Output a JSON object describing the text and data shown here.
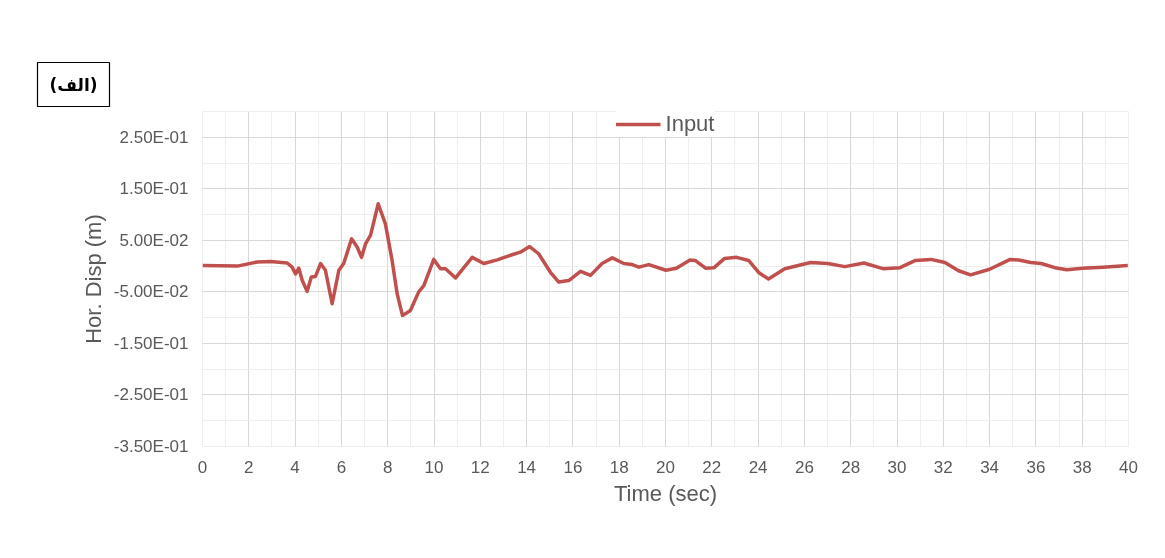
{
  "chart_data": {
    "type": "line",
    "xlabel": "Time (sec)",
    "ylabel": "Hor. Disp (m)",
    "annotations": [
      "(الف)"
    ],
    "legend": "top",
    "grid": true,
    "xlim": [
      0,
      40
    ],
    "xticks": [
      0,
      {
        "value": 1,
        "label": null
      },
      2,
      {
        "value": 3,
        "label": null
      },
      4,
      {
        "value": 5,
        "label": null
      },
      6,
      {
        "value": 7,
        "label": null
      },
      8,
      {
        "value": 9,
        "label": null
      },
      10,
      {
        "value": 11,
        "label": null
      },
      12,
      {
        "value": 13,
        "label": null
      },
      14,
      {
        "value": 15,
        "label": null
      },
      16,
      {
        "value": 17,
        "label": null
      },
      18,
      {
        "value": 19,
        "label": null
      },
      20,
      {
        "value": 21,
        "label": null
      },
      22,
      {
        "value": 23,
        "label": null
      },
      24,
      {
        "value": 25,
        "label": null
      },
      26,
      {
        "value": 27,
        "label": null
      },
      28,
      {
        "value": 29,
        "label": null
      },
      30,
      {
        "value": 31,
        "label": null
      },
      32,
      {
        "value": 33,
        "label": null
      },
      34,
      {
        "value": 35,
        "label": null
      },
      36,
      {
        "value": 37,
        "label": null
      },
      38,
      {
        "value": 39,
        "label": null
      },
      40
    ],
    "ylim": [
      -0.35,
      0.3
    ],
    "yticks": [
      {
        "value": -0.35,
        "label": "-3.50E-01"
      },
      {
        "value": -0.3,
        "label": null
      },
      {
        "value": -0.25,
        "label": "-2.50E-01"
      },
      {
        "value": -0.2,
        "label": null
      },
      {
        "value": -0.15,
        "label": "-1.50E-01"
      },
      {
        "value": -0.1,
        "label": null
      },
      {
        "value": -0.05,
        "label": "-5.00E-02"
      },
      {
        "value": 0,
        "label": null
      },
      {
        "value": 0.05,
        "label": "5.00E-02"
      },
      {
        "value": 0.1,
        "label": null
      },
      {
        "value": 0.15,
        "label": "1.50E-01"
      },
      {
        "value": 0.2,
        "label": null
      },
      {
        "value": 0.25,
        "label": "2.50E-01"
      }
    ],
    "series": [
      {
        "name": "Input",
        "color": "#c0504d",
        "x": [
          0,
          1.5,
          2.36,
          2.94,
          3.66,
          3.87,
          4.02,
          4.16,
          4.31,
          4.52,
          4.7,
          4.88,
          5.1,
          5.31,
          5.6,
          5.89,
          6.1,
          6.44,
          6.68,
          6.87,
          7.04,
          7.26,
          7.59,
          7.9,
          8.19,
          8.41,
          8.64,
          8.98,
          9.34,
          9.56,
          9.99,
          10.28,
          10.5,
          10.93,
          11.65,
          12.15,
          12.73,
          13.3,
          13.73,
          14.13,
          14.52,
          15.03,
          15.39,
          15.82,
          16.33,
          16.76,
          17.26,
          17.7,
          18.2,
          18.56,
          18.85,
          19.28,
          20.02,
          20.47,
          21.06,
          21.28,
          21.73,
          22.1,
          22.55,
          23.07,
          23.59,
          24.04,
          24.45,
          25.15,
          26.27,
          27.01,
          27.75,
          28.57,
          29.39,
          30.13,
          30.8,
          31.47,
          32.07,
          32.66,
          33.18,
          34.0,
          34.89,
          35.26,
          35.78,
          36.23,
          36.82,
          37.34,
          38.01,
          38.9,
          39.97
        ],
        "values": [
          0.001,
          0,
          0.008,
          0.009,
          0.006,
          -0.002,
          -0.015,
          -0.004,
          -0.028,
          -0.049,
          -0.021,
          -0.02,
          0.005,
          -0.008,
          -0.073,
          -0.008,
          0.005,
          0.053,
          0.037,
          0.017,
          0.043,
          0.06,
          0.121,
          0.082,
          0.011,
          -0.054,
          -0.096,
          -0.086,
          -0.05,
          -0.038,
          0.013,
          -0.005,
          -0.005,
          -0.023,
          0.017,
          0.005,
          0.012,
          0.021,
          0.027,
          0.038,
          0.024,
          -0.012,
          -0.031,
          -0.028,
          -0.01,
          -0.018,
          0.005,
          0.016,
          0.005,
          0.003,
          -0.002,
          0.003,
          -0.008,
          -0.004,
          0.012,
          0.011,
          -0.004,
          -0.003,
          0.015,
          0.017,
          0.011,
          -0.013,
          -0.025,
          -0.005,
          0.007,
          0.005,
          -0.001,
          0.006,
          -0.005,
          -0.003,
          0.011,
          0.013,
          0.007,
          -0.009,
          -0.017,
          -0.006,
          0.013,
          0.012,
          0.007,
          0.005,
          -0.003,
          -0.007,
          -0.004,
          -0.002,
          0.001
        ]
      }
    ]
  }
}
